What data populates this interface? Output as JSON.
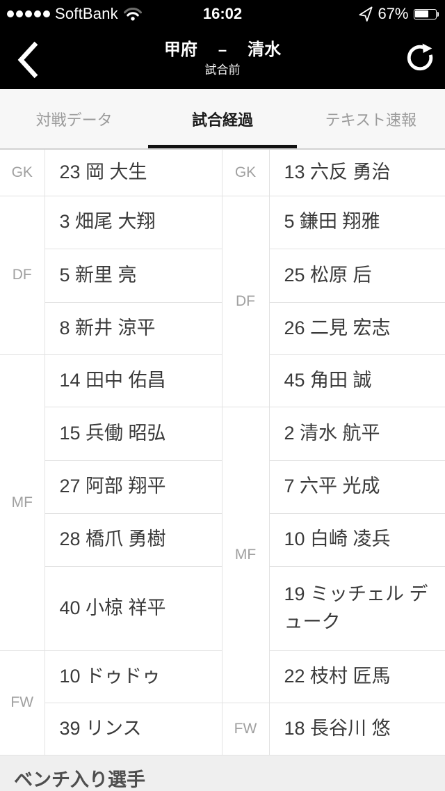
{
  "status_bar": {
    "carrier": "SoftBank",
    "signal_dots": 5,
    "time": "16:02",
    "battery_text": "67%",
    "battery_percent": 67
  },
  "icons": {
    "signal": "signal-dots",
    "wifi": "wifi-icon",
    "location": "location-arrow-icon",
    "battery": "battery-icon",
    "back": "chevron-left-icon",
    "refresh": "refresh-circular-arrow-icon"
  },
  "header": {
    "home_team": "甲府",
    "separator": "–",
    "away_team": "清水",
    "subtitle": "試合前"
  },
  "tabs": [
    {
      "label": "対戦データ",
      "active": false
    },
    {
      "label": "試合経過",
      "active": true
    },
    {
      "label": "テキスト速報",
      "active": false
    }
  ],
  "lineup": {
    "left": {
      "groups": [
        {
          "pos": "GK",
          "count": 1
        },
        {
          "pos": "DF",
          "count": 3
        },
        {
          "pos": "MF",
          "count": 5
        },
        {
          "pos": "FW",
          "count": 2
        }
      ],
      "players": [
        {
          "no": "23",
          "name": "岡 大生"
        },
        {
          "no": "3",
          "name": "畑尾 大翔"
        },
        {
          "no": "5",
          "name": "新里 亮"
        },
        {
          "no": "8",
          "name": "新井 涼平"
        },
        {
          "no": "14",
          "name": "田中 佑昌"
        },
        {
          "no": "15",
          "name": "兵働 昭弘"
        },
        {
          "no": "27",
          "name": "阿部 翔平"
        },
        {
          "no": "28",
          "name": "橋爪 勇樹"
        },
        {
          "no": "40",
          "name": "小椋 祥平"
        },
        {
          "no": "10",
          "name": "ドゥドゥ"
        },
        {
          "no": "39",
          "name": "リンス"
        }
      ]
    },
    "right": {
      "groups": [
        {
          "pos": "GK",
          "count": 1
        },
        {
          "pos": "DF",
          "count": 4
        },
        {
          "pos": "MF",
          "count": 5
        },
        {
          "pos": "FW",
          "count": 1
        }
      ],
      "players": [
        {
          "no": "13",
          "name": "六反 勇治"
        },
        {
          "no": "5",
          "name": "鎌田 翔雅"
        },
        {
          "no": "25",
          "name": "松原 后"
        },
        {
          "no": "26",
          "name": "二見 宏志"
        },
        {
          "no": "45",
          "name": "角田 誠"
        },
        {
          "no": "2",
          "name": "清水 航平"
        },
        {
          "no": "7",
          "name": "六平 光成"
        },
        {
          "no": "10",
          "name": "白崎 凌兵"
        },
        {
          "no": "19",
          "name": "ミッチェル デューク"
        },
        {
          "no": "22",
          "name": "枝村 匠馬"
        },
        {
          "no": "18",
          "name": "長谷川 悠"
        }
      ]
    }
  },
  "bench_section": {
    "title": "ベンチ入り選手"
  }
}
